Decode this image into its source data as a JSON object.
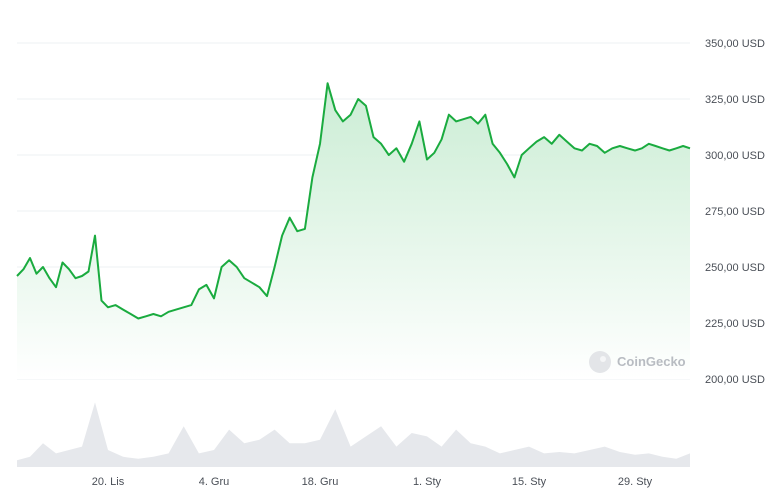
{
  "watermark": "CoinGecko",
  "colors": {
    "line": "#1aab3f",
    "area_top": "#c8ecd2",
    "area_bottom": "#ffffff",
    "volume": "#e6e8ec",
    "grid": "#eef0f3",
    "text": "#4a4f57"
  },
  "chart_data": {
    "type": "area",
    "y_ticks": [
      200,
      225,
      250,
      275,
      300,
      325,
      350
    ],
    "y_tick_labels": [
      "200,00 USD",
      "225,00 USD",
      "250,00 USD",
      "275,00 USD",
      "300,00 USD",
      "325,00 USD",
      "350,00 USD"
    ],
    "ylim": [
      200,
      350
    ],
    "x_ticks": [
      "20. Lis",
      "4. Gru",
      "18. Gru",
      "1. Sty",
      "15. Sty",
      "29. Sty"
    ],
    "price_series": {
      "days": [
        0,
        1,
        2,
        3,
        4,
        5,
        6,
        7,
        8,
        9,
        10,
        11,
        12,
        13,
        14,
        15,
        16,
        17,
        18,
        19,
        20,
        21,
        22,
        23,
        24,
        25,
        26,
        27,
        28,
        29,
        30,
        31,
        32,
        33,
        34,
        35,
        36,
        37,
        38,
        39,
        40,
        41,
        42,
        43,
        44,
        45,
        46,
        47,
        48,
        49,
        50,
        51,
        52,
        53,
        54,
        55,
        56,
        57,
        58,
        59,
        60,
        61,
        62,
        63,
        64,
        65,
        66,
        67,
        68,
        69,
        70,
        71,
        72,
        73,
        74,
        75,
        76,
        77,
        78,
        79,
        80,
        81,
        82,
        83,
        84,
        85,
        86,
        87,
        88,
        89,
        90,
        91,
        92
      ],
      "values": [
        246,
        249,
        254,
        247,
        250,
        245,
        241,
        252,
        249,
        245,
        246,
        248,
        264,
        235,
        232,
        233,
        231,
        229,
        227,
        228,
        229,
        228,
        230,
        231,
        232,
        233,
        240,
        242,
        236,
        250,
        253,
        250,
        245,
        243,
        241,
        237,
        250,
        264,
        272,
        266,
        267,
        290,
        305,
        332,
        320,
        315,
        318,
        325,
        322,
        308,
        305,
        300,
        303,
        297,
        305,
        315,
        298,
        301,
        307,
        318,
        315,
        316,
        317,
        314,
        318,
        305,
        301,
        296,
        290,
        300,
        303,
        306,
        308,
        305,
        309,
        306,
        303,
        302,
        305,
        304,
        301,
        303,
        304,
        303,
        302,
        303,
        305,
        304,
        303,
        302,
        303,
        304,
        303
      ]
    },
    "volume_series": {
      "days": [
        0,
        2,
        4,
        6,
        8,
        10,
        12,
        14,
        16,
        18,
        20,
        22,
        24,
        26,
        28,
        30,
        32,
        34,
        36,
        38,
        40,
        42,
        44,
        46,
        48,
        50,
        52,
        54,
        56,
        58,
        60,
        62,
        64,
        66,
        68,
        70,
        72,
        74,
        76,
        78,
        80,
        82,
        84,
        86,
        88,
        90,
        92
      ],
      "values": [
        0.1,
        0.15,
        0.35,
        0.2,
        0.25,
        0.3,
        0.95,
        0.25,
        0.15,
        0.12,
        0.15,
        0.2,
        0.6,
        0.2,
        0.25,
        0.55,
        0.35,
        0.4,
        0.55,
        0.35,
        0.35,
        0.4,
        0.85,
        0.3,
        0.45,
        0.6,
        0.3,
        0.5,
        0.45,
        0.3,
        0.55,
        0.35,
        0.3,
        0.2,
        0.25,
        0.3,
        0.2,
        0.22,
        0.2,
        0.25,
        0.3,
        0.22,
        0.18,
        0.2,
        0.15,
        0.12,
        0.2
      ]
    }
  }
}
